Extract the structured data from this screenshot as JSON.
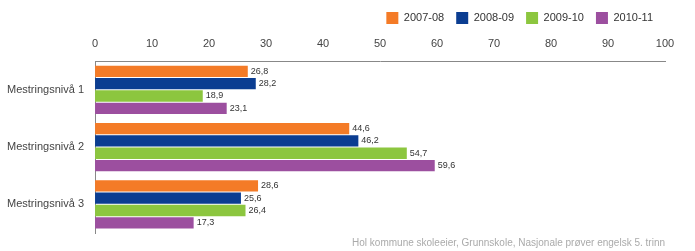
{
  "chart_data": {
    "type": "bar",
    "orientation": "horizontal",
    "subtitle": "Hol kommune skoleeier, Grunnskole, Nasjonale prøver engelsk 5. trinn",
    "categories": [
      "Mestringsnivå 1",
      "Mestringsnivå 2",
      "Mestringsnivå 3"
    ],
    "series": [
      {
        "name": "2007-08",
        "color": "#f47b27",
        "values": [
          26.8,
          44.6,
          28.6
        ],
        "value_labels": [
          "26,8",
          "44,6",
          "28,6"
        ]
      },
      {
        "name": "2008-09",
        "color": "#0b3d91",
        "values": [
          28.2,
          46.2,
          25.6
        ],
        "value_labels": [
          "28,2",
          "46,2",
          "25,6"
        ]
      },
      {
        "name": "2009-10",
        "color": "#8cc63f",
        "values": [
          18.9,
          54.7,
          26.4
        ],
        "value_labels": [
          "18,9",
          "54,7",
          "26,4"
        ]
      },
      {
        "name": "2010-11",
        "color": "#9c4f9f",
        "values": [
          23.1,
          59.6,
          17.3
        ],
        "value_labels": [
          "23,1",
          "59,6",
          "17,3"
        ]
      }
    ],
    "xlim": [
      0,
      100
    ],
    "xticks": [
      0,
      10,
      20,
      30,
      40,
      50,
      60,
      70,
      80,
      90,
      100
    ],
    "grid": false,
    "legend": "top-right",
    "data_labels": true
  }
}
